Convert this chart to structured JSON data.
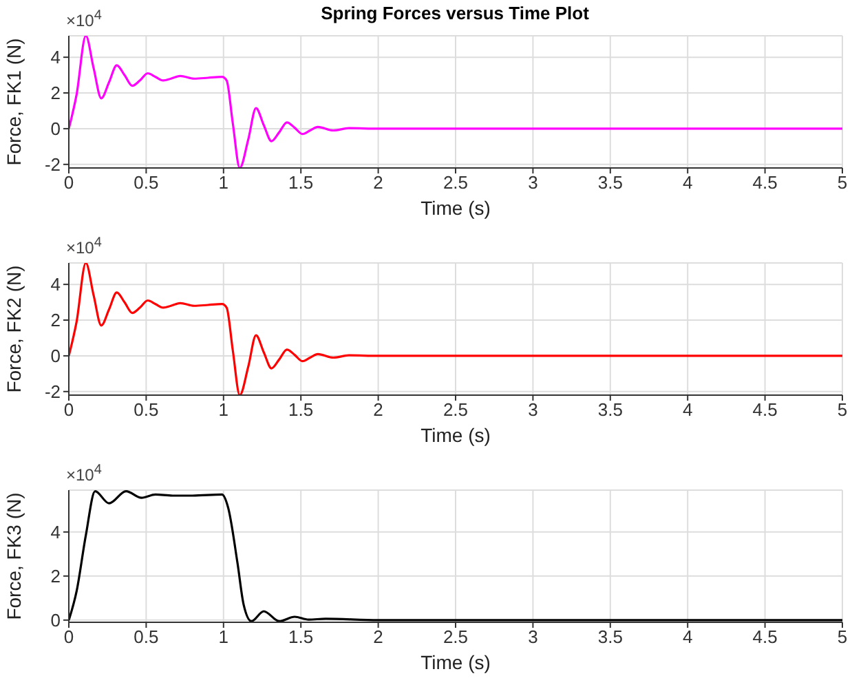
{
  "chart_data": [
    {
      "type": "line",
      "title": "Spring Forces versus Time Plot",
      "xlabel": "Time (s)",
      "ylabel": "Force, FK1 (N)",
      "annotations": [
        "×10$^{4}$"
      ],
      "xlim": [
        0,
        5
      ],
      "xticks": [
        0,
        0.5,
        1,
        1.5,
        2,
        2.5,
        3,
        3.5,
        4,
        4.5,
        5
      ],
      "ylim": [
        -2.2,
        5.2
      ],
      "yticks": [
        -2,
        0,
        2,
        4
      ],
      "grid": true,
      "series": [
        {
          "color": "#ff00ff",
          "x": [
            0,
            0.05,
            0.11,
            0.16,
            0.21,
            0.26,
            0.31,
            0.36,
            0.41,
            0.46,
            0.51,
            0.56,
            0.61,
            0.66,
            0.72,
            0.81,
            0.9,
            0.99,
            1.02,
            1.06,
            1.105,
            1.16,
            1.21,
            1.26,
            1.31,
            1.36,
            1.41,
            1.46,
            1.51,
            1.56,
            1.61,
            1.71,
            1.81,
            2,
            2.5,
            5
          ],
          "values": [
            0,
            1.9,
            5.2,
            3.4,
            1.7,
            2.6,
            3.55,
            3.0,
            2.4,
            2.7,
            3.1,
            2.9,
            2.7,
            2.8,
            2.95,
            2.8,
            2.85,
            2.9,
            2.7,
            0.3,
            -2.2,
            -0.6,
            1.15,
            0.2,
            -0.7,
            -0.2,
            0.35,
            0.05,
            -0.3,
            -0.1,
            0.1,
            -0.1,
            0.03,
            0,
            0,
            0
          ]
        }
      ]
    },
    {
      "type": "line",
      "xlabel": "Time (s)",
      "ylabel": "Force, FK2 (N)",
      "annotations": [
        "×10$^{4}$"
      ],
      "xlim": [
        0,
        5
      ],
      "xticks": [
        0,
        0.5,
        1,
        1.5,
        2,
        2.5,
        3,
        3.5,
        4,
        4.5,
        5
      ],
      "ylim": [
        -2.2,
        5.2
      ],
      "yticks": [
        -2,
        0,
        2,
        4
      ],
      "grid": true,
      "series": [
        {
          "color": "#ff0000",
          "x": [
            0,
            0.05,
            0.11,
            0.16,
            0.21,
            0.26,
            0.31,
            0.36,
            0.41,
            0.46,
            0.51,
            0.56,
            0.61,
            0.66,
            0.72,
            0.81,
            0.9,
            0.99,
            1.02,
            1.06,
            1.105,
            1.16,
            1.21,
            1.26,
            1.31,
            1.36,
            1.41,
            1.46,
            1.51,
            1.56,
            1.61,
            1.71,
            1.81,
            2,
            2.5,
            5
          ],
          "values": [
            0,
            1.9,
            5.2,
            3.4,
            1.7,
            2.6,
            3.55,
            3.0,
            2.4,
            2.7,
            3.1,
            2.9,
            2.7,
            2.8,
            2.95,
            2.8,
            2.85,
            2.9,
            2.7,
            0.3,
            -2.2,
            -0.6,
            1.15,
            0.2,
            -0.7,
            -0.2,
            0.35,
            0.05,
            -0.3,
            -0.1,
            0.1,
            -0.1,
            0.03,
            0,
            0,
            0
          ]
        }
      ]
    },
    {
      "type": "line",
      "xlabel": "Time (s)",
      "ylabel": "Force, FK3 (N)",
      "annotations": [
        "×10$^{4}$"
      ],
      "xlim": [
        0,
        5
      ],
      "xticks": [
        0,
        0.5,
        1,
        1.5,
        2,
        2.5,
        3,
        3.5,
        4,
        4.5,
        5
      ],
      "ylim": [
        -0.1,
        5.9
      ],
      "yticks": [
        0,
        2,
        4
      ],
      "grid": true,
      "series": [
        {
          "color": "#000000",
          "x": [
            0,
            0.05,
            0.11,
            0.17,
            0.26,
            0.37,
            0.47,
            0.56,
            0.67,
            0.8,
            0.99,
            1.03,
            1.09,
            1.13,
            1.18,
            1.26,
            1.36,
            1.46,
            1.55,
            1.66,
            2,
            5
          ],
          "values": [
            0,
            1.3,
            3.85,
            5.85,
            5.3,
            5.85,
            5.55,
            5.7,
            5.65,
            5.65,
            5.7,
            5.1,
            2.6,
            0.7,
            -0.05,
            0.4,
            -0.05,
            0.15,
            0.02,
            0.06,
            0,
            0
          ]
        }
      ]
    }
  ]
}
